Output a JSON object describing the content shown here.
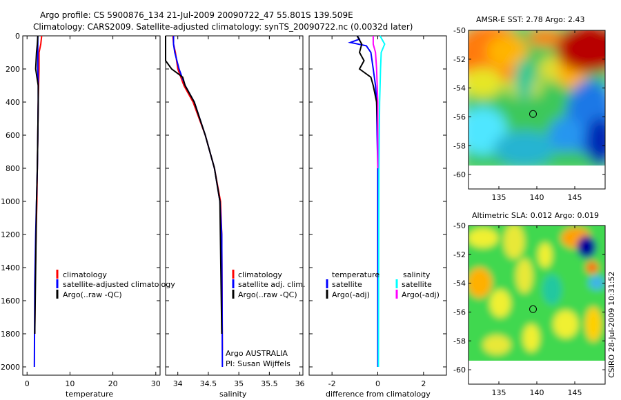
{
  "header": {
    "line1": "Argo profile: CS 5900876_134 21-Jul-2009 20090722_47 55.801S 139.509E",
    "line2": "Climatology: CARS2009. Satellite-adjusted climatology: synTS_20090722.nc (0.0032d later)"
  },
  "footer_stamp": "CSIRO 28-Jul-2009 10:31:52",
  "colors": {
    "clim": "#ff0000",
    "sat": "#0000ff",
    "argo": "#000000",
    "sal_sat": "#00ffff",
    "sal_argo": "#ff00ff"
  },
  "chart_data": [
    {
      "type": "line",
      "panel": "temperature",
      "xlabel": "temperature",
      "ylabel": "",
      "xlim": [
        -1,
        31
      ],
      "ylim": [
        2050,
        0
      ],
      "y_inverted": true,
      "xticks": [
        "0",
        "10",
        "20",
        "30"
      ],
      "yticks": [
        "0",
        "200",
        "400",
        "600",
        "800",
        "1000",
        "1200",
        "1400",
        "1600",
        "1800",
        "2000"
      ],
      "legend": [
        "climatology",
        "satellite-adjusted climatology",
        "Argo(..raw -QC)"
      ],
      "series": [
        {
          "name": "climatology",
          "color": "red",
          "x": [
            3.4,
            3.2,
            2.8,
            2.8,
            2.7,
            2.6,
            2.5,
            2.4,
            2.3,
            2.1,
            1.9,
            1.8
          ],
          "y": [
            0,
            50,
            100,
            200,
            300,
            400,
            600,
            800,
            1000,
            1200,
            1500,
            1800
          ]
        },
        {
          "name": "satellite-adjusted climatology",
          "color": "blue",
          "x": [
            2.5,
            2.5,
            2.5,
            2.5,
            2.6,
            2.6,
            2.5,
            2.4,
            2.2,
            2.0,
            1.8,
            1.7
          ],
          "y": [
            0,
            50,
            100,
            200,
            300,
            400,
            600,
            800,
            1000,
            1200,
            1500,
            2000
          ]
        },
        {
          "name": "Argo(..raw -QC)",
          "color": "black",
          "x": [
            2.5,
            2.4,
            2.2,
            2.0,
            2.3,
            2.6,
            2.6,
            2.5,
            2.4,
            2.2,
            2.0,
            1.8
          ],
          "y": [
            0,
            50,
            100,
            200,
            250,
            300,
            400,
            600,
            800,
            1000,
            1400,
            1800
          ]
        }
      ]
    },
    {
      "type": "line",
      "panel": "salinity",
      "xlabel": "salinity",
      "ylabel": "",
      "xlim": [
        33.8,
        36.05
      ],
      "ylim": [
        2050,
        0
      ],
      "y_inverted": true,
      "xticks": [
        "34",
        "34.5",
        "35",
        "35.5",
        "36"
      ],
      "legend": [
        "climatology",
        "satellite adj. clim.",
        "Argo(..raw -QC)"
      ],
      "annotations": [
        "Argo AUSTRALIA",
        "PI: Susan Wijffels"
      ],
      "series": [
        {
          "name": "climatology",
          "color": "red",
          "x": [
            33.92,
            33.93,
            33.96,
            34.0,
            34.1,
            34.25,
            34.45,
            34.6,
            34.7,
            34.72,
            34.73
          ],
          "y": [
            0,
            50,
            100,
            200,
            300,
            400,
            600,
            800,
            1000,
            1200,
            1900
          ]
        },
        {
          "name": "satellite adj. clim.",
          "color": "blue",
          "x": [
            33.93,
            33.93,
            33.95,
            34.02,
            34.12,
            34.27,
            34.45,
            34.6,
            34.69,
            34.72,
            34.73
          ],
          "y": [
            0,
            50,
            100,
            200,
            300,
            400,
            600,
            800,
            1000,
            1200,
            2000
          ]
        },
        {
          "name": "Argo(..raw -QC)",
          "color": "black",
          "x": [
            33.8,
            33.8,
            33.9,
            34.08,
            34.12,
            34.27,
            34.45,
            34.6,
            34.69,
            34.72
          ],
          "y": [
            0,
            150,
            200,
            250,
            300,
            400,
            600,
            800,
            1000,
            1800
          ]
        }
      ]
    },
    {
      "type": "line",
      "panel": "difference",
      "xlabel": "difference from climatology",
      "ylabel": "",
      "xlim": [
        -3,
        3
      ],
      "ylim": [
        2050,
        0
      ],
      "y_inverted": true,
      "xticks": [
        "-2",
        "0",
        "2"
      ],
      "legend_titles": [
        "temperature",
        "salinity"
      ],
      "legend": [
        "satellite",
        "Argo(-adj)",
        "satellite",
        "Argo(-adj)"
      ],
      "series": [
        {
          "name": "temperature satellite",
          "color": "blue",
          "x": [
            -0.9,
            -0.8,
            -1.2,
            -0.5,
            -0.3,
            -0.2,
            -0.1,
            -0.05,
            -0.03,
            0.0,
            0.0,
            0.0
          ],
          "y": [
            0,
            20,
            40,
            60,
            100,
            200,
            300,
            400,
            600,
            800,
            1200,
            2000
          ]
        },
        {
          "name": "temperature Argo(-adj)",
          "color": "black",
          "x": [
            -0.9,
            -0.7,
            -0.8,
            -0.6,
            -0.8,
            -0.3,
            -0.2,
            -0.05,
            0.0,
            0.0
          ],
          "y": [
            0,
            50,
            100,
            150,
            200,
            250,
            300,
            400,
            600,
            800
          ]
        },
        {
          "name": "salinity satellite",
          "color": "cyan",
          "x": [
            0.1,
            0.3,
            0.15,
            0.12,
            0.08,
            0.05,
            0.03
          ],
          "y": [
            0,
            50,
            100,
            200,
            400,
            800,
            2000
          ]
        },
        {
          "name": "salinity Argo(-adj)",
          "color": "magenta",
          "x": [
            -0.2,
            -0.2,
            -0.1,
            -0.05,
            0.0,
            0.0
          ],
          "y": [
            0,
            50,
            100,
            200,
            400,
            800
          ]
        }
      ]
    },
    {
      "type": "heatmap",
      "panel": "sst",
      "title": "AMSR-E SST: 2.78 Argo: 2.43",
      "xlim": [
        131,
        149
      ],
      "ylim": [
        -61,
        -50
      ],
      "xticks": [
        "135",
        "140",
        "145"
      ],
      "yticks": [
        "-50",
        "-52",
        "-54",
        "-56",
        "-58",
        "-60"
      ],
      "marker": {
        "lon": 139.5,
        "lat": -55.8
      }
    },
    {
      "type": "heatmap",
      "panel": "sla",
      "title": "Altimetric SLA: 0.012 Argo: 0.019",
      "xlim": [
        131,
        149
      ],
      "ylim": [
        -61,
        -50
      ],
      "xticks": [
        "135",
        "140",
        "145"
      ],
      "yticks": [
        "-50",
        "-52",
        "-54",
        "-56",
        "-58",
        "-60"
      ],
      "marker": {
        "lon": 139.5,
        "lat": -55.8
      }
    }
  ]
}
